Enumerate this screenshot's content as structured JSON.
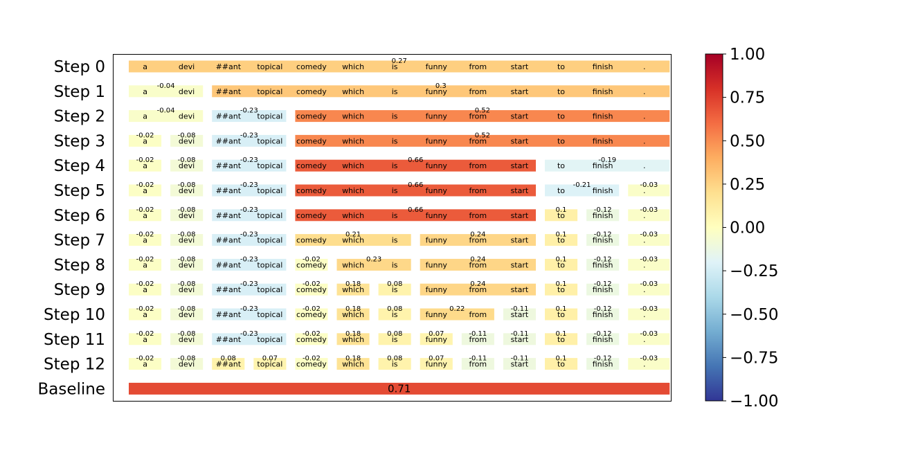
{
  "chart_data": {
    "type": "heatmap",
    "title": "",
    "tokens": [
      "a",
      "devi",
      "##ant",
      "topical",
      "comedy",
      "which",
      "is",
      "funny",
      "from",
      "start",
      "to",
      "finish",
      "."
    ],
    "rows": [
      {
        "label": "Step 0",
        "groups": [
          {
            "start": 0,
            "end": 12,
            "value": 0.27
          }
        ]
      },
      {
        "label": "Step 1",
        "groups": [
          {
            "start": 0,
            "end": 1,
            "value": -0.04
          },
          {
            "start": 2,
            "end": 12,
            "value": 0.3
          }
        ]
      },
      {
        "label": "Step 2",
        "groups": [
          {
            "start": 0,
            "end": 1,
            "value": -0.04
          },
          {
            "start": 2,
            "end": 3,
            "value": -0.23
          },
          {
            "start": 4,
            "end": 12,
            "value": 0.52
          }
        ]
      },
      {
        "label": "Step 3",
        "groups": [
          {
            "start": 0,
            "end": 0,
            "value": -0.02
          },
          {
            "start": 1,
            "end": 1,
            "value": -0.08
          },
          {
            "start": 2,
            "end": 3,
            "value": -0.23
          },
          {
            "start": 4,
            "end": 12,
            "value": 0.52
          }
        ]
      },
      {
        "label": "Step 4",
        "groups": [
          {
            "start": 0,
            "end": 0,
            "value": -0.02
          },
          {
            "start": 1,
            "end": 1,
            "value": -0.08
          },
          {
            "start": 2,
            "end": 3,
            "value": -0.23
          },
          {
            "start": 4,
            "end": 9,
            "value": 0.66
          },
          {
            "start": 10,
            "end": 12,
            "value": -0.19
          }
        ]
      },
      {
        "label": "Step 5",
        "groups": [
          {
            "start": 0,
            "end": 0,
            "value": -0.02
          },
          {
            "start": 1,
            "end": 1,
            "value": -0.08
          },
          {
            "start": 2,
            "end": 3,
            "value": -0.23
          },
          {
            "start": 4,
            "end": 9,
            "value": 0.66
          },
          {
            "start": 10,
            "end": 11,
            "value": -0.21
          },
          {
            "start": 12,
            "end": 12,
            "value": -0.03
          }
        ]
      },
      {
        "label": "Step 6",
        "groups": [
          {
            "start": 0,
            "end": 0,
            "value": -0.02
          },
          {
            "start": 1,
            "end": 1,
            "value": -0.08
          },
          {
            "start": 2,
            "end": 3,
            "value": -0.23
          },
          {
            "start": 4,
            "end": 9,
            "value": 0.66
          },
          {
            "start": 10,
            "end": 10,
            "value": 0.1
          },
          {
            "start": 11,
            "end": 11,
            "value": -0.12
          },
          {
            "start": 12,
            "end": 12,
            "value": -0.03
          }
        ]
      },
      {
        "label": "Step 7",
        "groups": [
          {
            "start": 0,
            "end": 0,
            "value": -0.02
          },
          {
            "start": 1,
            "end": 1,
            "value": -0.08
          },
          {
            "start": 2,
            "end": 3,
            "value": -0.23
          },
          {
            "start": 4,
            "end": 6,
            "value": 0.21
          },
          {
            "start": 7,
            "end": 9,
            "value": 0.24
          },
          {
            "start": 10,
            "end": 10,
            "value": 0.1
          },
          {
            "start": 11,
            "end": 11,
            "value": -0.12
          },
          {
            "start": 12,
            "end": 12,
            "value": -0.03
          }
        ]
      },
      {
        "label": "Step 8",
        "groups": [
          {
            "start": 0,
            "end": 0,
            "value": -0.02
          },
          {
            "start": 1,
            "end": 1,
            "value": -0.08
          },
          {
            "start": 2,
            "end": 3,
            "value": -0.23
          },
          {
            "start": 4,
            "end": 4,
            "value": -0.02
          },
          {
            "start": 5,
            "end": 6,
            "value": 0.23
          },
          {
            "start": 7,
            "end": 9,
            "value": 0.24
          },
          {
            "start": 10,
            "end": 10,
            "value": 0.1
          },
          {
            "start": 11,
            "end": 11,
            "value": -0.12
          },
          {
            "start": 12,
            "end": 12,
            "value": -0.03
          }
        ]
      },
      {
        "label": "Step 9",
        "groups": [
          {
            "start": 0,
            "end": 0,
            "value": -0.02
          },
          {
            "start": 1,
            "end": 1,
            "value": -0.08
          },
          {
            "start": 2,
            "end": 3,
            "value": -0.23
          },
          {
            "start": 4,
            "end": 4,
            "value": -0.02
          },
          {
            "start": 5,
            "end": 5,
            "value": 0.18
          },
          {
            "start": 6,
            "end": 6,
            "value": 0.08
          },
          {
            "start": 7,
            "end": 9,
            "value": 0.24
          },
          {
            "start": 10,
            "end": 10,
            "value": 0.1
          },
          {
            "start": 11,
            "end": 11,
            "value": -0.12
          },
          {
            "start": 12,
            "end": 12,
            "value": -0.03
          }
        ]
      },
      {
        "label": "Step 10",
        "groups": [
          {
            "start": 0,
            "end": 0,
            "value": -0.02
          },
          {
            "start": 1,
            "end": 1,
            "value": -0.08
          },
          {
            "start": 2,
            "end": 3,
            "value": -0.23
          },
          {
            "start": 4,
            "end": 4,
            "value": -0.02
          },
          {
            "start": 5,
            "end": 5,
            "value": 0.18
          },
          {
            "start": 6,
            "end": 6,
            "value": 0.08
          },
          {
            "start": 7,
            "end": 8,
            "value": 0.22
          },
          {
            "start": 9,
            "end": 9,
            "value": -0.11
          },
          {
            "start": 10,
            "end": 10,
            "value": 0.1
          },
          {
            "start": 11,
            "end": 11,
            "value": -0.12
          },
          {
            "start": 12,
            "end": 12,
            "value": -0.03
          }
        ]
      },
      {
        "label": "Step 11",
        "groups": [
          {
            "start": 0,
            "end": 0,
            "value": -0.02
          },
          {
            "start": 1,
            "end": 1,
            "value": -0.08
          },
          {
            "start": 2,
            "end": 3,
            "value": -0.23
          },
          {
            "start": 4,
            "end": 4,
            "value": -0.02
          },
          {
            "start": 5,
            "end": 5,
            "value": 0.18
          },
          {
            "start": 6,
            "end": 6,
            "value": 0.08
          },
          {
            "start": 7,
            "end": 7,
            "value": 0.07
          },
          {
            "start": 8,
            "end": 8,
            "value": -0.11
          },
          {
            "start": 9,
            "end": 9,
            "value": -0.11
          },
          {
            "start": 10,
            "end": 10,
            "value": 0.1
          },
          {
            "start": 11,
            "end": 11,
            "value": -0.12
          },
          {
            "start": 12,
            "end": 12,
            "value": -0.03
          }
        ]
      },
      {
        "label": "Step 12",
        "groups": [
          {
            "start": 0,
            "end": 0,
            "value": -0.02
          },
          {
            "start": 1,
            "end": 1,
            "value": -0.08
          },
          {
            "start": 2,
            "end": 2,
            "value": 0.08
          },
          {
            "start": 3,
            "end": 3,
            "value": 0.07
          },
          {
            "start": 4,
            "end": 4,
            "value": -0.02
          },
          {
            "start": 5,
            "end": 5,
            "value": 0.18
          },
          {
            "start": 6,
            "end": 6,
            "value": 0.08
          },
          {
            "start": 7,
            "end": 7,
            "value": 0.07
          },
          {
            "start": 8,
            "end": 8,
            "value": -0.11
          },
          {
            "start": 9,
            "end": 9,
            "value": -0.11
          },
          {
            "start": 10,
            "end": 10,
            "value": 0.1
          },
          {
            "start": 11,
            "end": 11,
            "value": -0.12
          },
          {
            "start": 12,
            "end": 12,
            "value": -0.03
          }
        ]
      }
    ],
    "baseline": {
      "label": "Baseline",
      "value": 0.71
    },
    "colorbar": {
      "colormap": "RdYlBu_r",
      "range": [
        -1.0,
        1.0
      ],
      "ticks": [
        "1.00",
        "0.75",
        "0.50",
        "0.25",
        "0.00",
        "−0.25",
        "−0.50",
        "−0.75",
        "−1.00"
      ],
      "tick_values": [
        1.0,
        0.75,
        0.5,
        0.25,
        0.0,
        -0.25,
        -0.5,
        -0.75,
        -1.0
      ],
      "colors": [
        "#313695",
        "#4575b4",
        "#74add1",
        "#abd9e9",
        "#e0f3f8",
        "#ffffbf",
        "#fee090",
        "#fdae61",
        "#f46d43",
        "#d73027",
        "#a50026"
      ]
    },
    "grid": false,
    "legend": "colorbar-right"
  }
}
